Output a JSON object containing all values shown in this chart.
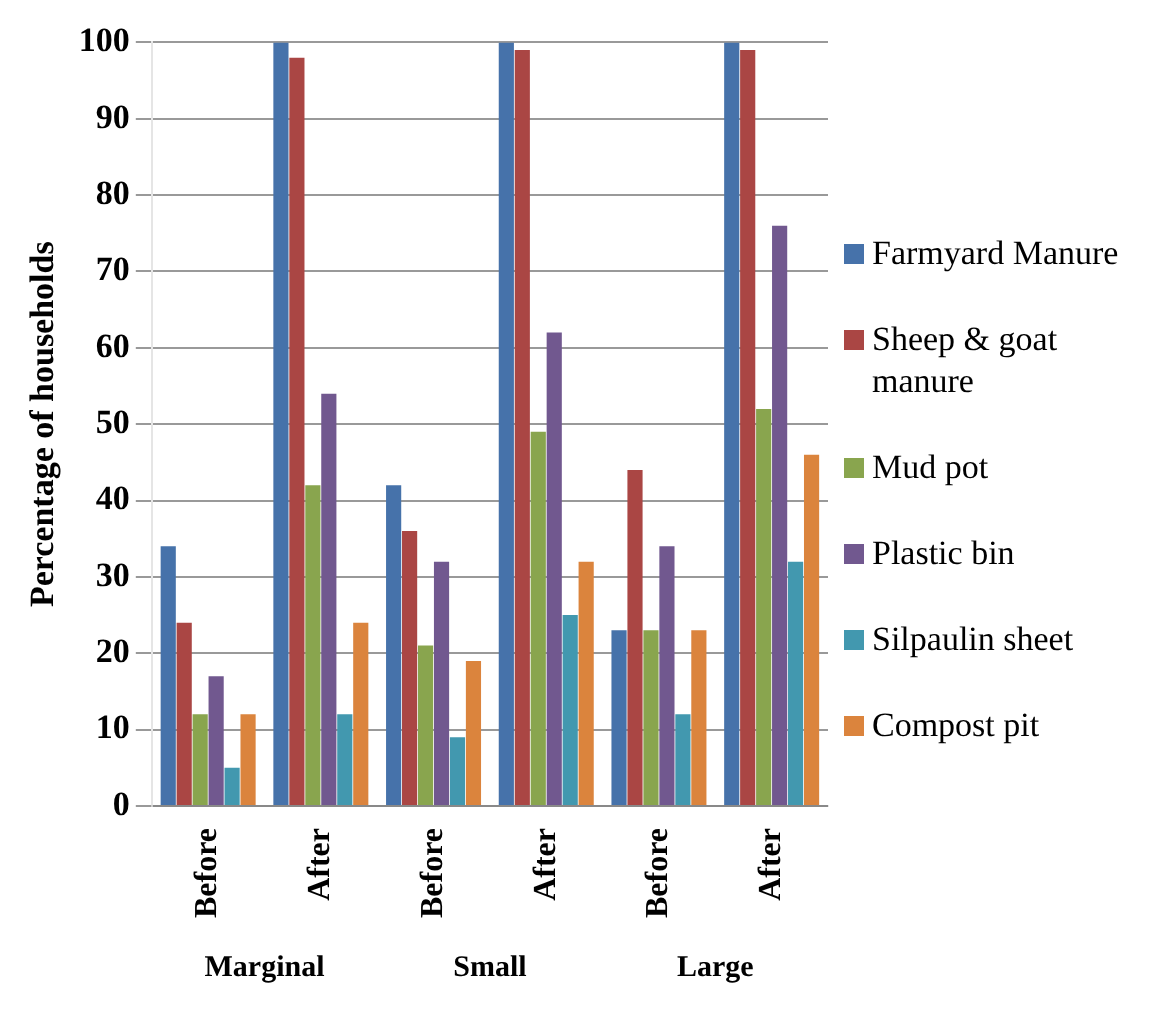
{
  "chart_data": {
    "type": "bar",
    "ylabel": "Percentage of households",
    "categories": [
      "Before",
      "After",
      "Before",
      "After",
      "Before",
      "After"
    ],
    "annotations": [
      "Marginal",
      "Small",
      "Large"
    ],
    "series": [
      {
        "name": "Farmyard Manure",
        "color": "#4672aa",
        "values": [
          34,
          100,
          42,
          100,
          23,
          100
        ]
      },
      {
        "name": "Sheep & goat manure",
        "color": "#aa4644",
        "values": [
          24,
          98,
          36,
          99,
          44,
          99
        ]
      },
      {
        "name": "Mud pot",
        "color": "#89a54e",
        "values": [
          12,
          42,
          21,
          49,
          23,
          52
        ]
      },
      {
        "name": "Plastic bin",
        "color": "#71588f",
        "values": [
          17,
          54,
          32,
          62,
          34,
          76
        ]
      },
      {
        "name": "Silpaulin sheet",
        "color": "#4298af",
        "values": [
          5,
          12,
          9,
          25,
          12,
          32
        ]
      },
      {
        "name": "Compost pit",
        "color": "#db843d",
        "values": [
          12,
          24,
          19,
          32,
          23,
          46
        ]
      }
    ],
    "ylim": [
      0,
      100
    ],
    "yticks": [
      0,
      10,
      20,
      30,
      40,
      50,
      60,
      70,
      80,
      90,
      100
    ],
    "grid": "y",
    "legend": "right"
  }
}
